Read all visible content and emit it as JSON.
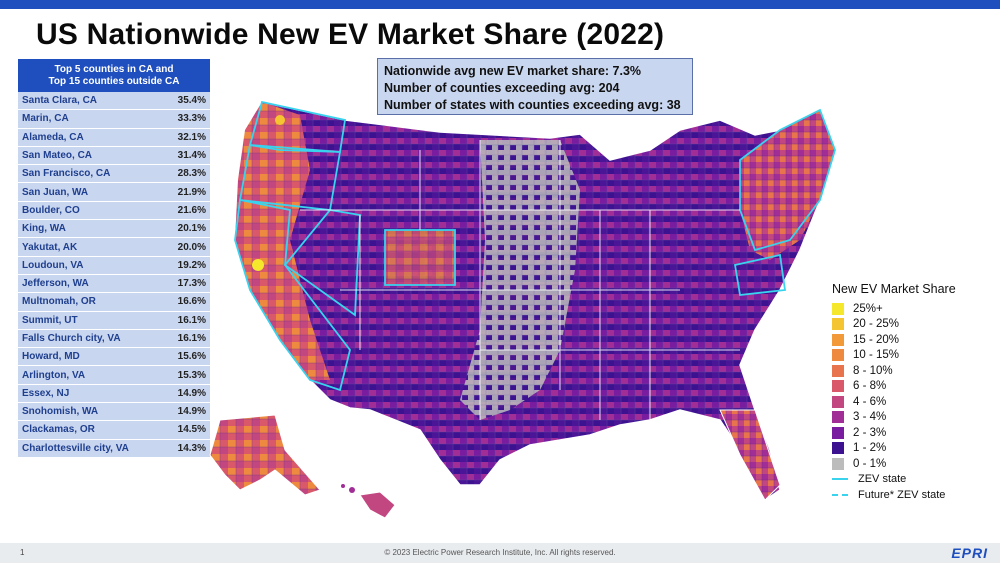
{
  "title": "US Nationwide New EV Market Share (2022)",
  "table": {
    "header_line1": "Top 5 counties in CA and",
    "header_line2": "Top 15 counties outside CA",
    "rows": [
      {
        "county": "Santa Clara, CA",
        "value": "35.4%"
      },
      {
        "county": "Marin, CA",
        "value": "33.3%"
      },
      {
        "county": "Alameda, CA",
        "value": "32.1%"
      },
      {
        "county": "San Mateo, CA",
        "value": "31.4%"
      },
      {
        "county": "San Francisco, CA",
        "value": "28.3%"
      },
      {
        "county": "San Juan, WA",
        "value": "21.9%"
      },
      {
        "county": "Boulder, CO",
        "value": "21.6%"
      },
      {
        "county": "King, WA",
        "value": "20.1%"
      },
      {
        "county": "Yakutat, AK",
        "value": "20.0%"
      },
      {
        "county": "Loudoun, VA",
        "value": "19.2%"
      },
      {
        "county": "Jefferson, WA",
        "value": "17.3%"
      },
      {
        "county": "Multnomah, OR",
        "value": "16.6%"
      },
      {
        "county": "Summit, UT",
        "value": "16.1%"
      },
      {
        "county": "Falls Church city, VA",
        "value": "16.1%"
      },
      {
        "county": "Howard, MD",
        "value": "15.6%"
      },
      {
        "county": "Arlington, VA",
        "value": "15.3%"
      },
      {
        "county": "Essex, NJ",
        "value": "14.9%"
      },
      {
        "county": "Snohomish, WA",
        "value": "14.9%"
      },
      {
        "county": "Clackamas, OR",
        "value": "14.5%"
      },
      {
        "county": "Charlottesville city, VA",
        "value": "14.3%"
      }
    ]
  },
  "stats": {
    "line1": "Nationwide avg new EV market share: 7.3%",
    "line2": "Number of counties exceeding avg: 204",
    "line3": "Number of states with counties exceeding avg: 38"
  },
  "legend": {
    "title": "New EV Market Share",
    "items": [
      {
        "label": "25%+",
        "color": "#f5e72c"
      },
      {
        "label": "20 - 25%",
        "color": "#f4c531"
      },
      {
        "label": "15 - 20%",
        "color": "#f29a3a"
      },
      {
        "label": "10 - 15%",
        "color": "#ee8a40"
      },
      {
        "label": "8 - 10%",
        "color": "#e7744c"
      },
      {
        "label": "6 - 8%",
        "color": "#d9596a"
      },
      {
        "label": "4 - 6%",
        "color": "#c24680"
      },
      {
        "label": "3 - 4%",
        "color": "#a12d97"
      },
      {
        "label": "2 - 3%",
        "color": "#7a1ca0"
      },
      {
        "label": "1 - 2%",
        "color": "#3d1290"
      },
      {
        "label": "0 - 1%",
        "color": "#bcbcbc"
      }
    ],
    "zev_label": "ZEV state",
    "future_label": "Future* ZEV state",
    "zev_color": "#39d3ee"
  },
  "footer": {
    "page_number": "1",
    "copyright": "© 2023 Electric Power Research Institute, Inc. All rights reserved.",
    "logo_text": "EPRI"
  }
}
